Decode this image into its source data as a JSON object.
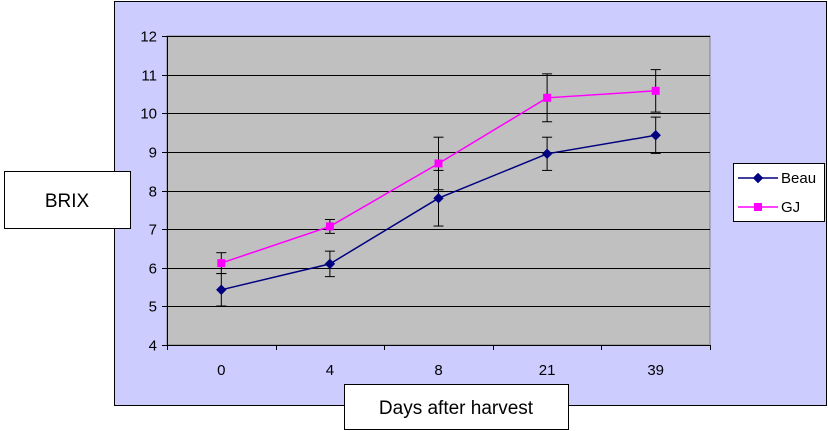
{
  "chart_data": {
    "type": "line",
    "title": "",
    "xlabel": "Days after harvest",
    "ylabel": "BRIX",
    "categories": [
      "0",
      "4",
      "8",
      "21",
      "39"
    ],
    "ylim": [
      4,
      12
    ],
    "yticks": [
      4,
      5,
      6,
      7,
      8,
      9,
      10,
      11,
      12
    ],
    "grid": true,
    "legend_position": "right",
    "series": [
      {
        "name": "Beau",
        "values": [
          5.43,
          6.1,
          7.8,
          8.95,
          9.43
        ],
        "error": [
          0.42,
          0.33,
          0.72,
          0.43,
          0.47
        ],
        "color": "#000080",
        "marker": "diamond"
      },
      {
        "name": "GJ",
        "values": [
          6.12,
          7.07,
          8.7,
          10.4,
          10.58
        ],
        "error": [
          0.27,
          0.18,
          0.68,
          0.62,
          0.55
        ],
        "color": "#FF00FF",
        "marker": "square"
      }
    ],
    "colors": {
      "plot_area": "#C0C0C0",
      "chart_area": "#CCCCFF",
      "gridline": "#000000",
      "error_bar": "#000000"
    }
  }
}
